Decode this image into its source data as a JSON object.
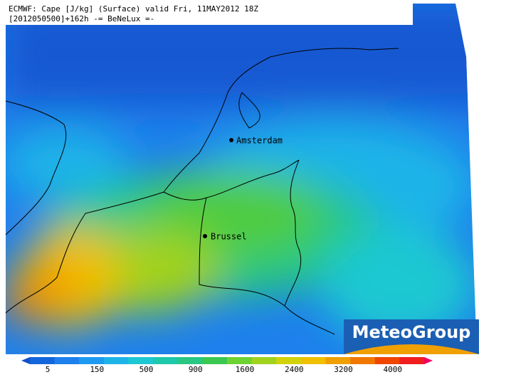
{
  "header": {
    "line1": "ECMWF: Cape [J/kg] (Surface) valid Fri, 11MAY2012 18Z",
    "line2": "[2012050500]+162h -= BeNeLux =-"
  },
  "cities": [
    {
      "label": "Amsterdam"
    },
    {
      "label": "Brussel"
    }
  ],
  "logo": "MeteoGroup",
  "colorbar": {
    "labels": [
      5,
      150,
      500,
      900,
      1600,
      2400,
      3200,
      4000
    ],
    "colors": [
      "#1450c8",
      "#1466dc",
      "#1e80ec",
      "#1e9af0",
      "#1eb4e8",
      "#1ec8d2",
      "#1ec8aa",
      "#28c882",
      "#3cc850",
      "#6ed232",
      "#a0d21e",
      "#d2d20a",
      "#f0c000",
      "#f0a000",
      "#f07800",
      "#f04600",
      "#f01e1e",
      "#f00064"
    ]
  }
}
